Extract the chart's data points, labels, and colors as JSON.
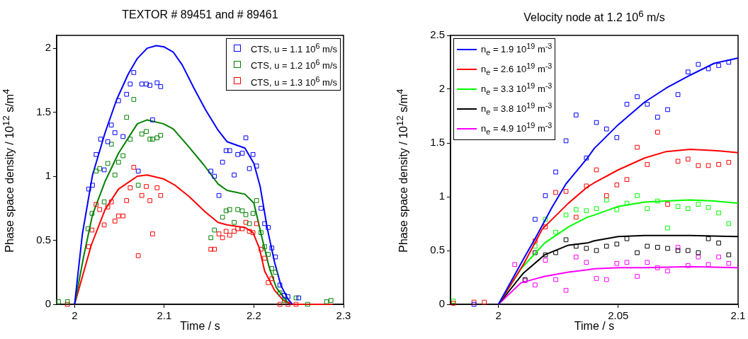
{
  "chart_data": [
    {
      "type": "scatter",
      "title": "TEXTOR # 89451 and # 89461",
      "xlabel": "Time / s",
      "ylabel": "Phase space density / 10$^{12}$ s/m$^{4}$",
      "xlim": [
        1.98,
        2.3
      ],
      "xticks": [
        2,
        2.1,
        2.2,
        2.3
      ],
      "ylim": [
        0,
        2.1
      ],
      "yticks": [
        0,
        0.5,
        1,
        1.5,
        2
      ],
      "legend": "top right",
      "series": [
        {
          "name": "CTS, u = 1.1 10$^{6}$ m/s",
          "marker": "square",
          "color": "#0000ff",
          "x": [
            2.0157,
            2.0199,
            2.024,
            2.029,
            2.033,
            2.037,
            2.041,
            2.045,
            2.049,
            2.054,
            2.058,
            2.062,
            2.066,
            2.071,
            2.075,
            2.08,
            2.084,
            2.087,
            2.092,
            2.096,
            2.152,
            2.156,
            2.161,
            2.165,
            2.169,
            2.173,
            2.178,
            2.182,
            2.187,
            2.191,
            2.195,
            2.199,
            2.203,
            2.208,
            2.212,
            2.216,
            2.22,
            2.224,
            2.229,
            2.234,
            2.238,
            2.25
          ],
          "values": [
            0.9,
            0.93,
            1.17,
            1.29,
            1.05,
            1.27,
            1.4,
            1.34,
            1.59,
            1.31,
            1.64,
            1.72,
            1.81,
            1.04,
            1.72,
            1.72,
            1.71,
            1.44,
            1.73,
            1.7,
            1.04,
            1.0,
            0.85,
            1.11,
            1.2,
            1.2,
            1.01,
            1.17,
            1.18,
            1.3,
            1.06,
            1.17,
            1.08,
            0.75,
            0.63,
            0.6,
            0.44,
            0.37,
            0.15,
            0.07,
            0.06,
            0.05
          ]
        },
        {
          "name": "CTS, u = 1.2 10$^{6}$ m/s",
          "marker": "square",
          "color": "#008000",
          "x": [
            1.982,
            1.992,
            2.0149,
            2.0194,
            2.024,
            2.028,
            2.033,
            2.037,
            2.041,
            2.045,
            2.049,
            2.054,
            2.058,
            2.062,
            2.066,
            2.071,
            2.075,
            2.08,
            2.084,
            2.087,
            2.092,
            2.096,
            2.152,
            2.156,
            2.165,
            2.169,
            2.173,
            2.178,
            2.182,
            2.187,
            2.191,
            2.195,
            2.199,
            2.203,
            2.208,
            2.212,
            2.216,
            2.22,
            2.224,
            2.229,
            2.234,
            2.247,
            2.26,
            2.281,
            2.286
          ],
          "values": [
            0.02,
            0.02,
            0.59,
            0.71,
            1.04,
            1.06,
            0.8,
            1.1,
            1.25,
            1.01,
            1.11,
            1.16,
            1.46,
            1.29,
            1.6,
            0.93,
            1.33,
            1.35,
            1.29,
            1.29,
            1.3,
            1.32,
            0.52,
            0.58,
            0.68,
            0.73,
            0.74,
            0.64,
            0.74,
            0.73,
            0.7,
            0.63,
            0.71,
            0.81,
            0.56,
            0.45,
            0.39,
            0.28,
            0.25,
            0.09,
            0.03,
            0.05,
            0.0,
            0.02,
            0.03
          ]
        },
        {
          "name": "CTS, u = 1.3 10$^{6}$ m/s",
          "marker": "square",
          "color": "#ff0000",
          "x": [
            1.992,
            2.0157,
            2.0194,
            2.024,
            2.028,
            2.033,
            2.037,
            2.041,
            2.045,
            2.049,
            2.054,
            2.058,
            2.062,
            2.066,
            2.071,
            2.075,
            2.08,
            2.084,
            2.087,
            2.092,
            2.096,
            2.152,
            2.156,
            2.161,
            2.165,
            2.169,
            2.173,
            2.178,
            2.182,
            2.187,
            2.191,
            2.195,
            2.199,
            2.203,
            2.208,
            2.212,
            2.216,
            2.22,
            2.229,
            2.238,
            2.247
          ],
          "values": [
            0.0,
            0.45,
            0.58,
            0.78,
            0.74,
            0.62,
            0.76,
            0.8,
            0.65,
            0.69,
            0.69,
            0.81,
            0.91,
            1.07,
            0.38,
            0.85,
            0.92,
            0.81,
            0.55,
            0.91,
            0.85,
            0.43,
            0.43,
            0.55,
            0.52,
            0.57,
            0.54,
            0.57,
            0.59,
            0.59,
            0.64,
            0.57,
            0.56,
            0.63,
            0.43,
            0.36,
            0.17,
            0.2,
            0.0,
            0.0,
            0.0
          ]
        },
        {
          "type": "line",
          "marker": "none",
          "color": "#0000ff",
          "x": [
            2.0,
            2.0087,
            2.02,
            2.034,
            2.047,
            2.06,
            2.07,
            2.081,
            2.091,
            2.1,
            2.11,
            2.12,
            2.133,
            2.146,
            2.16,
            2.17,
            2.19,
            2.2,
            2.207,
            2.215,
            2.223,
            2.23,
            2.238,
            2.243
          ],
          "values": [
            0,
            0.55,
            1.01,
            1.34,
            1.6,
            1.8,
            1.92,
            2.0,
            2.02,
            2.01,
            1.97,
            1.87,
            1.69,
            1.52,
            1.36,
            1.27,
            1.22,
            1.1,
            0.92,
            0.59,
            0.33,
            0.15,
            0.04,
            0
          ]
        },
        {
          "type": "line",
          "marker": "none",
          "color": "#008000",
          "x": [
            2.0,
            2.01,
            2.02,
            2.034,
            2.049,
            2.07,
            2.081,
            2.099,
            2.11,
            2.125,
            2.144,
            2.16,
            2.17,
            2.19,
            2.2,
            2.208,
            2.217,
            2.225,
            2.238
          ],
          "values": [
            0,
            0.37,
            0.7,
            0.96,
            1.18,
            1.41,
            1.44,
            1.41,
            1.37,
            1.25,
            1.09,
            0.94,
            0.89,
            0.86,
            0.79,
            0.55,
            0.29,
            0.13,
            0.01
          ]
        },
        {
          "type": "line",
          "marker": "none",
          "color": "#ff0000",
          "x": [
            2.0,
            2.0185,
            2.034,
            2.049,
            2.07,
            2.081,
            2.099,
            2.112,
            2.128,
            2.146,
            2.16,
            2.17,
            2.19,
            2.199,
            2.206,
            2.212,
            2.223,
            2.233,
            2.243,
            2.288
          ],
          "values": [
            0,
            0.46,
            0.74,
            0.9,
            1.0,
            1.01,
            0.98,
            0.93,
            0.84,
            0.72,
            0.64,
            0.62,
            0.6,
            0.56,
            0.44,
            0.26,
            0.11,
            0.03,
            0,
            0
          ]
        }
      ]
    },
    {
      "type": "scatter",
      "title": "Velocity node at 1.2 10$^{6}$ m/s",
      "xlabel": "Time / s",
      "ylabel": "Phase space density / 10$^{12}$ s/m$^{4}$",
      "xlim": [
        1.98,
        2.1
      ],
      "xticks": [
        2,
        2.05,
        2.1
      ],
      "ylim": [
        0,
        2.5
      ],
      "yticks": [
        0,
        0.5,
        1,
        1.5,
        2,
        2.5
      ],
      "legend": "top left",
      "series": [
        {
          "name": "n$_{e}$ = 1.9 10$^{19}$ m$^{-3}$",
          "type": "line",
          "marker": "none",
          "color": "#0000ff",
          "x": [
            2.0,
            2.0104,
            2.0153,
            2.0223,
            2.0282,
            2.0371,
            2.04,
            2.05,
            2.061,
            2.07,
            2.08,
            2.09,
            2.1
          ],
          "values": [
            0,
            0.42,
            0.61,
            0.9,
            1.12,
            1.36,
            1.45,
            1.67,
            1.88,
            2.01,
            2.13,
            2.24,
            2.29
          ]
        },
        {
          "name": "n$_{e}$ = 2.6 10$^{19}$ m$^{-3}$",
          "type": "line",
          "marker": "none",
          "color": "#ff0000",
          "x": [
            2.0,
            2.0104,
            2.0183,
            2.0292,
            2.0371,
            2.04,
            2.05,
            2.061,
            2.07,
            2.08,
            2.09,
            2.1
          ],
          "values": [
            0,
            0.37,
            0.7,
            0.94,
            1.09,
            1.13,
            1.25,
            1.36,
            1.42,
            1.44,
            1.43,
            1.41
          ]
        },
        {
          "name": "n$_{e}$ = 3.3 10$^{19}$ m$^{-3}$",
          "type": "line",
          "marker": "none",
          "color": "#00ff00",
          "x": [
            2.0,
            2.0094,
            2.0193,
            2.0292,
            2.0371,
            2.04,
            2.05,
            2.061,
            2.07,
            2.08,
            2.09,
            2.1
          ],
          "values": [
            0,
            0.33,
            0.57,
            0.72,
            0.81,
            0.83,
            0.91,
            0.95,
            0.96,
            0.97,
            0.96,
            0.94
          ]
        },
        {
          "name": "n$_{e}$ = 3.8 10$^{19}$ m$^{-3}$",
          "type": "line",
          "marker": "none",
          "color": "#000000",
          "x": [
            2.0,
            2.0104,
            2.0193,
            2.0292,
            2.0371,
            2.04,
            2.05,
            2.061,
            2.08,
            2.1
          ],
          "values": [
            0,
            0.29,
            0.46,
            0.55,
            0.57,
            0.59,
            0.63,
            0.64,
            0.64,
            0.63
          ]
        },
        {
          "name": "n$_{e}$ = 4.9 10$^{19}$ m$^{-3}$",
          "type": "line",
          "marker": "none",
          "color": "#ff00ff",
          "x": [
            2.0,
            2.0094,
            2.0193,
            2.0292,
            2.0371,
            2.04,
            2.05,
            2.061,
            2.08,
            2.1
          ],
          "values": [
            0,
            0.2,
            0.26,
            0.3,
            0.32,
            0.33,
            0.34,
            0.34,
            0.35,
            0.34
          ]
        },
        {
          "marker": "square",
          "color": "#0000ff",
          "x": [
            1.9898,
            2.0153,
            2.0196,
            2.0239,
            2.0282,
            2.0324,
            2.0367,
            2.0409,
            2.0451,
            2.0494,
            2.0536,
            2.0579,
            2.0621,
            2.0664,
            2.0706,
            2.0749,
            2.0791,
            2.0834,
            2.0876,
            2.0919,
            2.0961
          ],
          "values": [
            0,
            0.79,
            1.01,
            1.23,
            1.52,
            1.76,
            1.36,
            1.69,
            1.63,
            1.55,
            1.86,
            1.93,
            1.86,
            1.74,
            1.81,
            1.95,
            2.16,
            2.23,
            2.19,
            2.22,
            2.25
          ]
        },
        {
          "marker": "square",
          "color": "#ff0000",
          "x": [
            1.9812,
            1.9898,
            1.9941,
            2.0153,
            2.0196,
            2.0239,
            2.0282,
            2.0324,
            2.0367,
            2.0409,
            2.0451,
            2.0494,
            2.0536,
            2.0579,
            2.0621,
            2.0664,
            2.0706,
            2.0749,
            2.0791,
            2.0834,
            2.0876,
            2.0919,
            2.0961
          ],
          "values": [
            0.01,
            0.02,
            0.02,
            0.59,
            0.72,
            1.04,
            1.05,
            0.81,
            1.1,
            1.25,
            1.01,
            1.11,
            1.16,
            1.46,
            1.3,
            1.6,
            0.93,
            1.33,
            1.35,
            1.29,
            1.29,
            1.3,
            1.32
          ]
        },
        {
          "marker": "square",
          "color": "#00ff00",
          "x": [
            1.9812,
            2.0153,
            2.0196,
            2.0239,
            2.0282,
            2.0324,
            2.0367,
            2.0409,
            2.0451,
            2.0494,
            2.0536,
            2.0579,
            2.0621,
            2.0664,
            2.0706,
            2.0749,
            2.0791,
            2.0834,
            2.0876,
            2.0919,
            2.0961
          ],
          "values": [
            0.03,
            0.54,
            0.79,
            0.67,
            0.83,
            0.88,
            0.87,
            0.89,
            0.97,
            0.88,
            0.94,
            1.01,
            0.89,
            0.96,
            0.71,
            0.91,
            0.89,
            0.93,
            0.9,
            0.85,
            0.75
          ]
        },
        {
          "marker": "square",
          "color": "#000000",
          "x": [
            2.0111,
            2.0153,
            2.0196,
            2.0239,
            2.0282,
            2.0324,
            2.0367,
            2.0409,
            2.0451,
            2.0494,
            2.0536,
            2.0579,
            2.0621,
            2.0664,
            2.0706,
            2.0749,
            2.0791,
            2.0834,
            2.0876,
            2.0919,
            2.0961
          ],
          "values": [
            0.23,
            0.48,
            0.46,
            0.48,
            0.6,
            0.54,
            0.52,
            0.5,
            0.54,
            0.56,
            0.61,
            0.48,
            0.54,
            0.53,
            0.52,
            0.5,
            0.5,
            0.48,
            0.61,
            0.57,
            0.46
          ]
        },
        {
          "marker": "square",
          "color": "#ff00ff",
          "x": [
            2.0068,
            2.0111,
            2.0153,
            2.0196,
            2.0239,
            2.0282,
            2.0324,
            2.0367,
            2.0409,
            2.0451,
            2.0494,
            2.0536,
            2.0579,
            2.0621,
            2.0664,
            2.0706,
            2.0749,
            2.0791,
            2.0834,
            2.0876,
            2.0919,
            2.0961
          ],
          "values": [
            0.37,
            0.22,
            0.18,
            0.41,
            0.23,
            0.13,
            0.44,
            0.39,
            0.24,
            0.23,
            0.38,
            0.39,
            0.26,
            0.39,
            0.34,
            0.31,
            0.53,
            0.36,
            0.44,
            0.37,
            0.44,
            0.38
          ]
        }
      ]
    }
  ]
}
